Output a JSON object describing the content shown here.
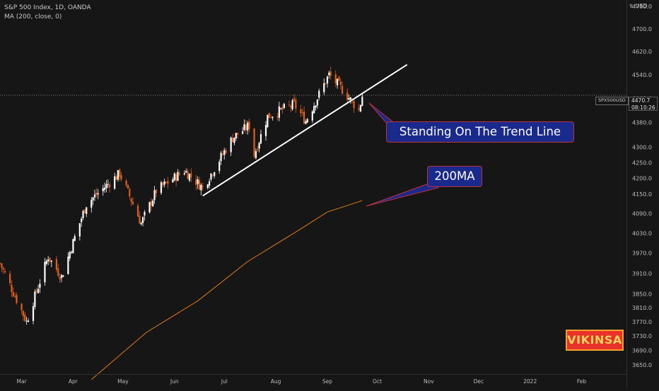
{
  "header": {
    "title": "S&P 500 Index, 1D, OANDA",
    "indicator": "MA (200, close, 0)",
    "currency": "USD"
  },
  "price_tag": {
    "symbol": "SPX500USD",
    "price": "4470.7",
    "countdown": "08:10:26"
  },
  "annotations": {
    "trend_callout": "Standing On The Trend Line",
    "ma_callout": "200MA"
  },
  "watermark": "VIKINSA",
  "colors": {
    "background": "#161616",
    "up_candle": "#ffffff",
    "down_candle": "#e0601a",
    "ma_line": "#e07a1a",
    "trend_line": "#ffffff",
    "callout_fill": "#1a2a8c",
    "callout_border": "#c0303a"
  },
  "chart_data": {
    "type": "candlestick",
    "title": "S&P 500 Index, 1D, OANDA",
    "y_scale": "log",
    "ylim": [
      3610,
      4800
    ],
    "y_ticks": [
      3650,
      3690,
      3730,
      3770,
      3810,
      3850,
      3910,
      3970,
      4030,
      4090,
      4150,
      4200,
      4250,
      4300,
      4380,
      4460,
      4540,
      4620,
      4700,
      4780
    ],
    "y_tick_labels": [
      "3650.0",
      "3690.0",
      "3730.0",
      "3770.0",
      "3810.0",
      "3850.0",
      "3910.0",
      "3970.0",
      "4030.0",
      "4090.0",
      "4150.0",
      "4200.0",
      "4250.0",
      "4300.0",
      "4380.0",
      "4460.0",
      "4540.0",
      "4620.0",
      "4700.0",
      "4780.0"
    ],
    "x_axis": {
      "start": "2021-02-16",
      "end": "2022-02-28",
      "labels": [
        {
          "date": "2021-03-01",
          "label": "Mar"
        },
        {
          "date": "2021-04-01",
          "label": "Apr"
        },
        {
          "date": "2021-05-01",
          "label": "May"
        },
        {
          "date": "2021-06-01",
          "label": "Jun"
        },
        {
          "date": "2021-07-01",
          "label": "Jul"
        },
        {
          "date": "2021-08-01",
          "label": "Aug"
        },
        {
          "date": "2021-09-01",
          "label": "Sep"
        },
        {
          "date": "2021-10-01",
          "label": "Oct"
        },
        {
          "date": "2021-11-01",
          "label": "Nov"
        },
        {
          "date": "2021-12-01",
          "label": "Dec"
        },
        {
          "date": "2022-01-01",
          "label": "2022"
        },
        {
          "date": "2022-02-01",
          "label": "Feb"
        }
      ]
    },
    "last_price": 4470.7,
    "series": [
      {
        "name": "SPX500USD",
        "type": "candlestick",
        "anchors": [
          {
            "date": "2021-02-16",
            "close": 3940
          },
          {
            "date": "2021-03-04",
            "close": 3770
          },
          {
            "date": "2021-03-17",
            "close": 3960
          },
          {
            "date": "2021-03-25",
            "close": 3900
          },
          {
            "date": "2021-04-09",
            "close": 4120
          },
          {
            "date": "2021-04-29",
            "close": 4215
          },
          {
            "date": "2021-05-12",
            "close": 4060
          },
          {
            "date": "2021-05-21",
            "close": 4160
          },
          {
            "date": "2021-06-07",
            "close": 4225
          },
          {
            "date": "2021-06-18",
            "close": 4170
          },
          {
            "date": "2021-07-06",
            "close": 4330
          },
          {
            "date": "2021-07-16",
            "close": 4370
          },
          {
            "date": "2021-07-19",
            "close": 4275
          },
          {
            "date": "2021-07-27",
            "close": 4400
          },
          {
            "date": "2021-08-12",
            "close": 4440
          },
          {
            "date": "2021-08-19",
            "close": 4385
          },
          {
            "date": "2021-09-02",
            "close": 4540
          },
          {
            "date": "2021-09-10",
            "close": 4490
          },
          {
            "date": "2021-09-20",
            "close": 4420
          },
          {
            "date": "2021-09-22",
            "close": 4470
          }
        ]
      },
      {
        "name": "MA (200, close, 0)",
        "type": "line",
        "points": [
          {
            "date": "2021-04-12",
            "value": 3610
          },
          {
            "date": "2021-05-15",
            "value": 3740
          },
          {
            "date": "2021-06-15",
            "value": 3830
          },
          {
            "date": "2021-07-15",
            "value": 3945
          },
          {
            "date": "2021-08-15",
            "value": 4040
          },
          {
            "date": "2021-09-01",
            "value": 4095
          },
          {
            "date": "2021-09-22",
            "value": 4130
          }
        ]
      },
      {
        "name": "Trend Line",
        "type": "line",
        "points": [
          {
            "date": "2021-06-18",
            "value": 4145
          },
          {
            "date": "2021-10-19",
            "value": 4575
          }
        ]
      }
    ]
  }
}
